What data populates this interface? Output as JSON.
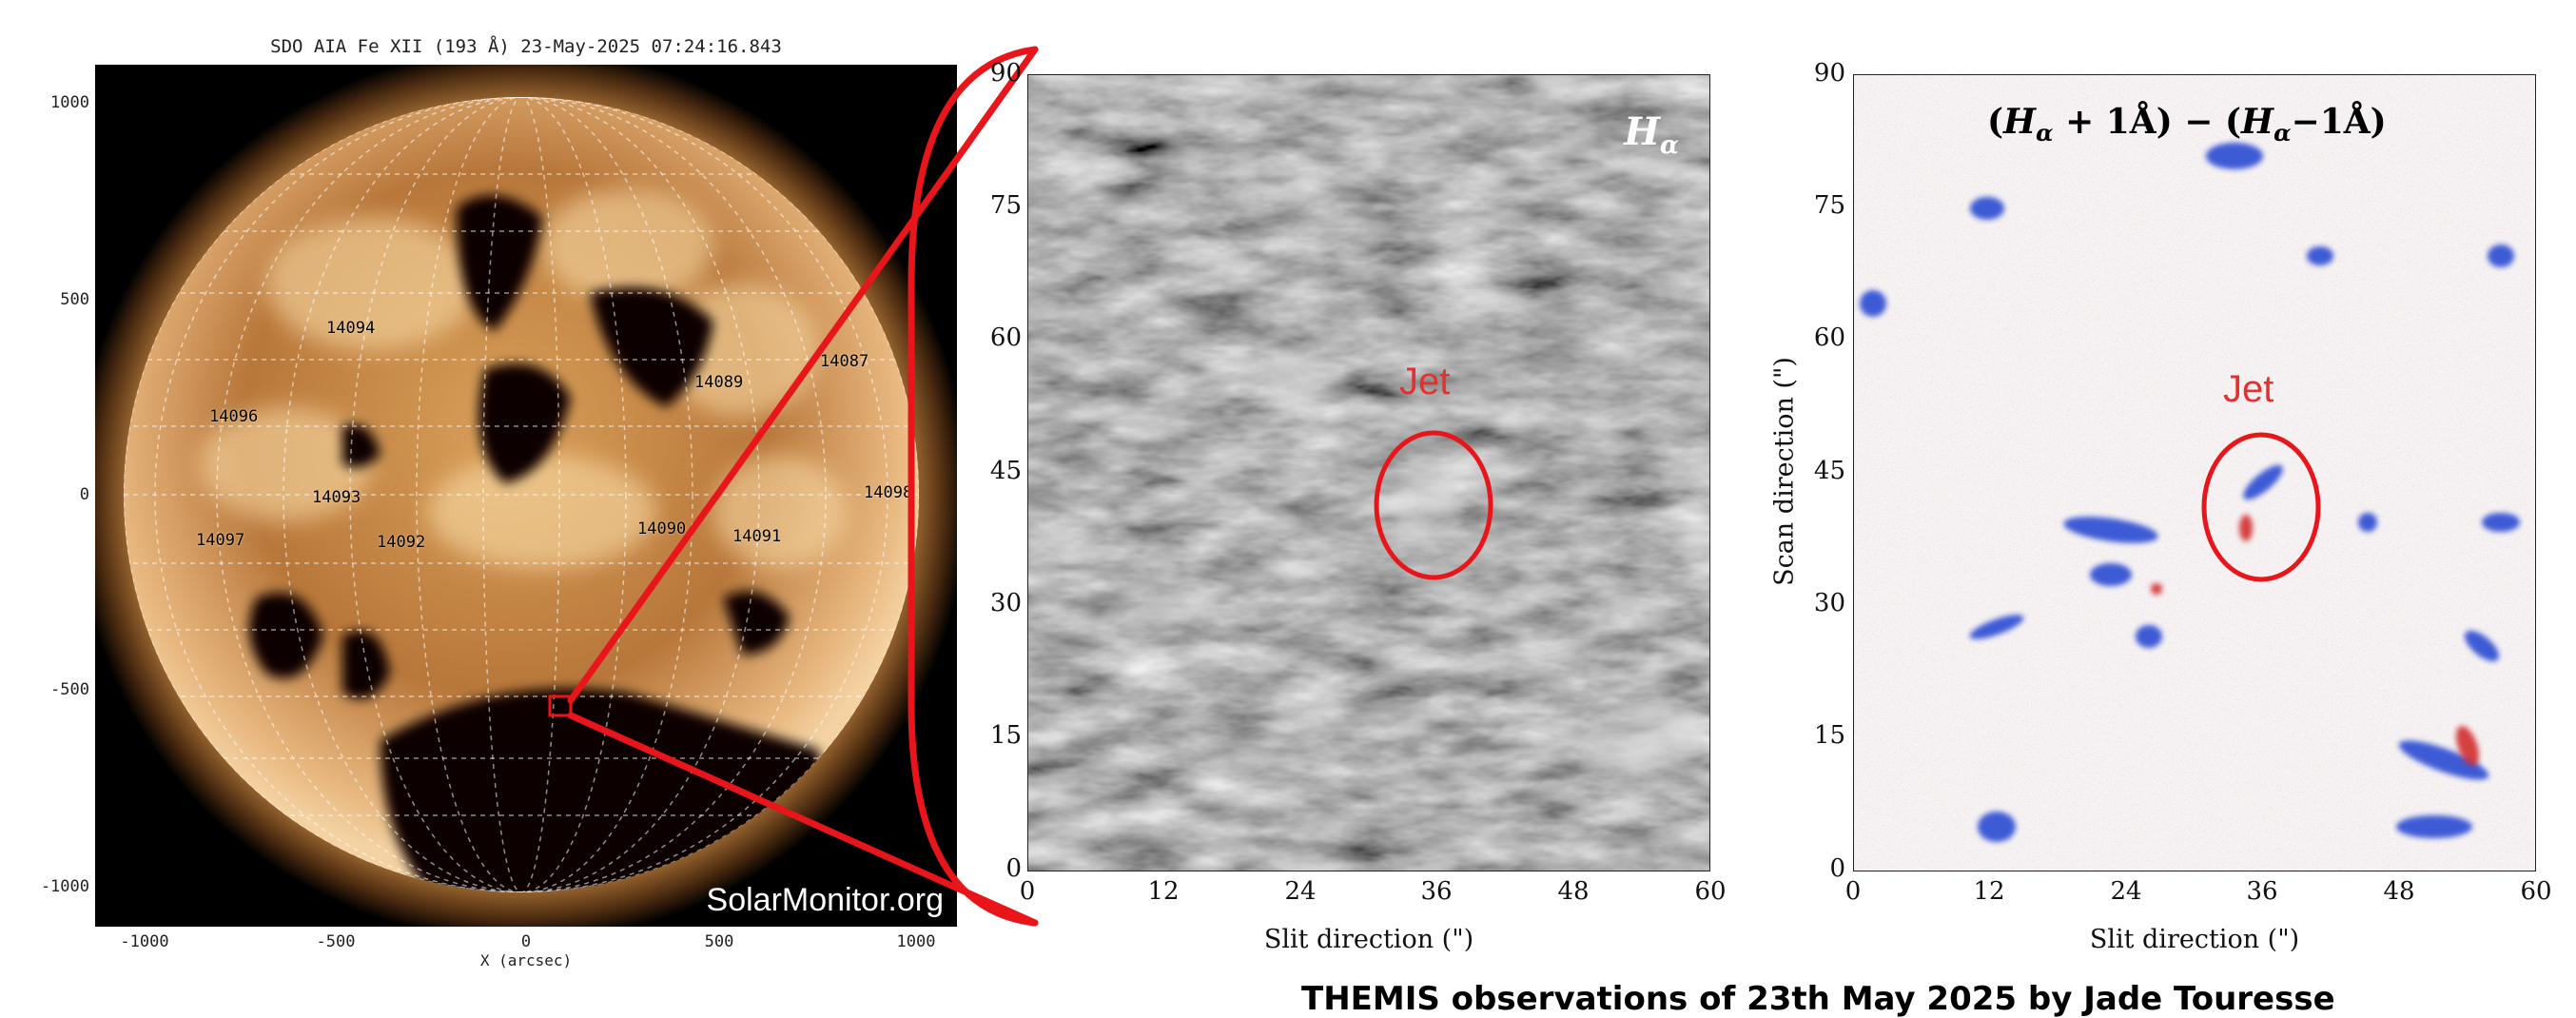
{
  "sun_panel": {
    "title": "SDO AIA Fe XII (193 Å) 23-May-2025 07:24:16.843",
    "y_ticks": [
      "1000",
      "500",
      "0",
      "-500",
      "-1000"
    ],
    "x_ticks": [
      "-1000",
      "-500",
      "0",
      "500",
      "1000"
    ],
    "x_label": "X (arcsec)",
    "watermark": "SolarMonitor.org",
    "active_regions": [
      "14094",
      "14096",
      "14089",
      "14087",
      "14093",
      "14097",
      "14092",
      "14090",
      "14091",
      "14098"
    ]
  },
  "halpha_panel": {
    "title": "H",
    "title_sub": "α",
    "y_ticks": [
      "90",
      "75",
      "60",
      "45",
      "30",
      "15",
      "0"
    ],
    "x_ticks": [
      "0",
      "12",
      "24",
      "36",
      "48",
      "60"
    ],
    "x_label": "Slit direction (\")",
    "jet_label": "Jet"
  },
  "diff_panel": {
    "title_parts": [
      "(",
      "H",
      "α",
      " + 1Å) − (",
      "H",
      "α",
      "−1Å)"
    ],
    "y_ticks": [
      "90",
      "75",
      "60",
      "45",
      "30",
      "15",
      "0"
    ],
    "x_ticks": [
      "0",
      "12",
      "24",
      "36",
      "48",
      "60"
    ],
    "x_label": "Slit direction (\")",
    "y_label": "Scan direction (\")",
    "jet_label": "Jet"
  },
  "caption": "THEMIS observations of 23th May 2025 by Jade Touresse",
  "colors": {
    "highlight": "#e8151b",
    "jet_text": "#e53030",
    "corona": "#c98a3a",
    "blue_feature": "#1a3fd0",
    "red_feature": "#d02020"
  }
}
